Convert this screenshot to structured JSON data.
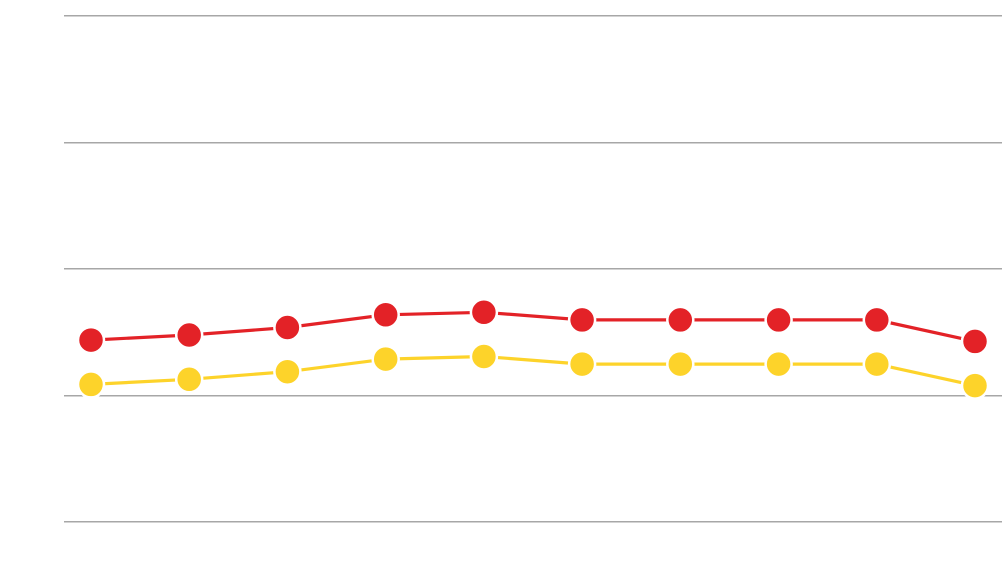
{
  "chart_data": {
    "type": "line",
    "title": "",
    "xlabel": "",
    "ylabel": "",
    "x": [
      1,
      2,
      3,
      4,
      5,
      6,
      7,
      8,
      9,
      10
    ],
    "ylim": [
      0,
      4
    ],
    "yticks": [
      0,
      1,
      2,
      3,
      4
    ],
    "grid": true,
    "legend": "none",
    "series": [
      {
        "color": "#e32227",
        "values": [
          1.43,
          1.47,
          1.53,
          1.63,
          1.65,
          1.59,
          1.59,
          1.59,
          1.59,
          1.42
        ]
      },
      {
        "color": "#fdd32a",
        "values": [
          1.08,
          1.12,
          1.18,
          1.28,
          1.3,
          1.24,
          1.24,
          1.24,
          1.24,
          1.07
        ]
      }
    ]
  }
}
